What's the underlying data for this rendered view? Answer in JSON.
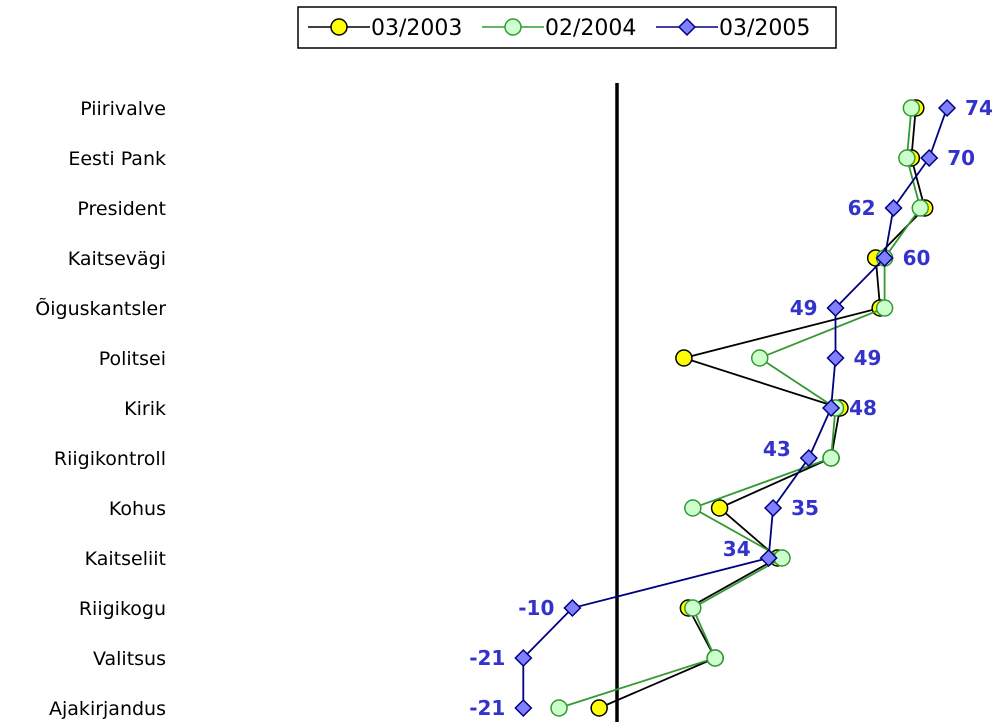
{
  "chart_data": {
    "type": "line",
    "orientation": "horizontal-dot",
    "categories": [
      "Piirivalve",
      "Eesti Pank",
      "President",
      "Kaitsevägi",
      "Õiguskantsler",
      "Politsei",
      "Kirik",
      "Riigikontroll",
      "Kohus",
      "Kaitseliit",
      "Riigikogu",
      "Valitsus",
      "Ajakirjandus"
    ],
    "series": [
      {
        "name": "03/2003",
        "marker": "circle",
        "color": "#000000",
        "marker_fill": "#ffff00",
        "values": [
          67,
          66,
          69,
          58,
          59,
          15,
          50,
          48,
          23,
          36,
          16,
          22,
          -4
        ]
      },
      {
        "name": "02/2004",
        "marker": "circle",
        "color": "#339933",
        "marker_fill": "#ccffcc",
        "values": [
          66,
          65,
          68,
          60,
          60,
          32,
          49,
          48,
          17,
          37,
          17,
          22,
          -13
        ]
      },
      {
        "name": "03/2005",
        "marker": "diamond",
        "color": "#000080",
        "marker_fill": "#8080ff",
        "values": [
          74,
          70,
          62,
          60,
          49,
          49,
          48,
          43,
          35,
          34,
          -10,
          -21,
          -21
        ]
      }
    ],
    "data_labels": {
      "series": "03/2005",
      "values": [
        "74",
        "70",
        "62",
        "60",
        "49",
        "49",
        "48",
        "43",
        "35",
        "34",
        "-10",
        "-21",
        "-21"
      ]
    },
    "zero_line": 0,
    "legend_position": "top",
    "grid": false
  }
}
